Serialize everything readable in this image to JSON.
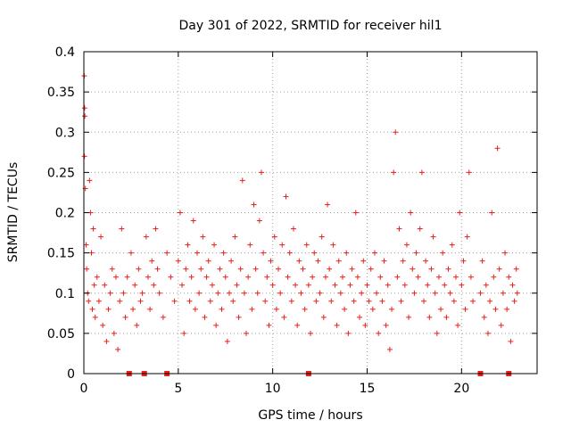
{
  "chart_data": {
    "type": "scatter",
    "title": "Day 301 of 2022, SRMTID for receiver hil1",
    "xlabel": "GPS time / hours",
    "ylabel": "SRMTID / TECUs",
    "xlim": [
      0,
      24
    ],
    "ylim": [
      0,
      0.4
    ],
    "x_ticks": [
      0,
      5,
      10,
      15,
      20
    ],
    "y_ticks": [
      0,
      0.05,
      0.1,
      0.15,
      0.2,
      0.25,
      0.3,
      0.35,
      0.4
    ],
    "x_tick_labels": [
      "0",
      "5",
      "10",
      "15",
      "20"
    ],
    "y_tick_labels": [
      "0",
      "0.05",
      "0.1",
      "0.15",
      "0.2",
      "0.25",
      "0.3",
      "0.35",
      "0.4"
    ],
    "grid": true,
    "legend": "none",
    "marker_color": "#e8201a",
    "series": [
      {
        "marker": "plus",
        "points": [
          [
            0.02,
            0.37
          ],
          [
            0.04,
            0.33
          ],
          [
            0.05,
            0.32
          ],
          [
            0.03,
            0.27
          ],
          [
            0.08,
            0.23
          ],
          [
            0.12,
            0.16
          ],
          [
            0.15,
            0.13
          ],
          [
            0.2,
            0.1
          ],
          [
            0.25,
            0.09
          ],
          [
            0.3,
            0.24
          ],
          [
            0.35,
            0.2
          ],
          [
            0.4,
            0.15
          ],
          [
            0.45,
            0.08
          ],
          [
            0.5,
            0.18
          ],
          [
            0.55,
            0.11
          ],
          [
            0.6,
            0.07
          ],
          [
            0.7,
            0.12
          ],
          [
            0.8,
            0.09
          ],
          [
            0.9,
            0.17
          ],
          [
            1.0,
            0.06
          ],
          [
            1.1,
            0.11
          ],
          [
            1.2,
            0.04
          ],
          [
            1.3,
            0.08
          ],
          [
            1.4,
            0.1
          ],
          [
            1.5,
            0.13
          ],
          [
            1.6,
            0.05
          ],
          [
            1.7,
            0.12
          ],
          [
            1.8,
            0.03
          ],
          [
            1.9,
            0.09
          ],
          [
            2.0,
            0.18
          ],
          [
            2.1,
            0.1
          ],
          [
            2.2,
            0.07
          ],
          [
            2.3,
            0.12
          ],
          [
            2.5,
            0.15
          ],
          [
            2.6,
            0.08
          ],
          [
            2.7,
            0.11
          ],
          [
            2.8,
            0.06
          ],
          [
            2.9,
            0.13
          ],
          [
            3.0,
            0.09
          ],
          [
            3.1,
            0.1
          ],
          [
            3.3,
            0.17
          ],
          [
            3.4,
            0.12
          ],
          [
            3.5,
            0.08
          ],
          [
            3.6,
            0.14
          ],
          [
            3.7,
            0.11
          ],
          [
            3.8,
            0.18
          ],
          [
            3.9,
            0.13
          ],
          [
            4.0,
            0.1
          ],
          [
            4.2,
            0.07
          ],
          [
            4.4,
            0.15
          ],
          [
            4.6,
            0.12
          ],
          [
            4.8,
            0.09
          ],
          [
            5.0,
            0.14
          ],
          [
            5.1,
            0.2
          ],
          [
            5.2,
            0.11
          ],
          [
            5.3,
            0.05
          ],
          [
            5.4,
            0.13
          ],
          [
            5.5,
            0.16
          ],
          [
            5.6,
            0.09
          ],
          [
            5.7,
            0.12
          ],
          [
            5.8,
            0.19
          ],
          [
            5.9,
            0.08
          ],
          [
            6.0,
            0.15
          ],
          [
            6.1,
            0.1
          ],
          [
            6.2,
            0.13
          ],
          [
            6.3,
            0.17
          ],
          [
            6.4,
            0.07
          ],
          [
            6.5,
            0.12
          ],
          [
            6.6,
            0.14
          ],
          [
            6.7,
            0.09
          ],
          [
            6.8,
            0.11
          ],
          [
            6.9,
            0.16
          ],
          [
            7.0,
            0.06
          ],
          [
            7.1,
            0.1
          ],
          [
            7.2,
            0.13
          ],
          [
            7.3,
            0.08
          ],
          [
            7.4,
            0.15
          ],
          [
            7.5,
            0.12
          ],
          [
            7.6,
            0.04
          ],
          [
            7.7,
            0.1
          ],
          [
            7.8,
            0.14
          ],
          [
            7.9,
            0.09
          ],
          [
            8.0,
            0.17
          ],
          [
            8.1,
            0.11
          ],
          [
            8.2,
            0.07
          ],
          [
            8.3,
            0.13
          ],
          [
            8.4,
            0.24
          ],
          [
            8.5,
            0.1
          ],
          [
            8.6,
            0.05
          ],
          [
            8.7,
            0.12
          ],
          [
            8.8,
            0.16
          ],
          [
            8.9,
            0.08
          ],
          [
            9.0,
            0.21
          ],
          [
            9.1,
            0.13
          ],
          [
            9.2,
            0.1
          ],
          [
            9.3,
            0.19
          ],
          [
            9.4,
            0.25
          ],
          [
            9.5,
            0.15
          ],
          [
            9.6,
            0.09
          ],
          [
            9.7,
            0.12
          ],
          [
            9.8,
            0.06
          ],
          [
            9.9,
            0.14
          ],
          [
            10.0,
            0.11
          ],
          [
            10.1,
            0.17
          ],
          [
            10.2,
            0.08
          ],
          [
            10.3,
            0.13
          ],
          [
            10.4,
            0.1
          ],
          [
            10.5,
            0.16
          ],
          [
            10.6,
            0.07
          ],
          [
            10.7,
            0.22
          ],
          [
            10.8,
            0.12
          ],
          [
            10.9,
            0.15
          ],
          [
            11.0,
            0.09
          ],
          [
            11.1,
            0.18
          ],
          [
            11.2,
            0.11
          ],
          [
            11.3,
            0.06
          ],
          [
            11.4,
            0.14
          ],
          [
            11.5,
            0.1
          ],
          [
            11.6,
            0.13
          ],
          [
            11.7,
            0.08
          ],
          [
            11.8,
            0.16
          ],
          [
            11.9,
            0.11
          ],
          [
            12.0,
            0.05
          ],
          [
            12.1,
            0.12
          ],
          [
            12.2,
            0.15
          ],
          [
            12.3,
            0.09
          ],
          [
            12.4,
            0.14
          ],
          [
            12.5,
            0.1
          ],
          [
            12.6,
            0.17
          ],
          [
            12.7,
            0.07
          ],
          [
            12.8,
            0.12
          ],
          [
            12.9,
            0.21
          ],
          [
            13.0,
            0.13
          ],
          [
            13.1,
            0.09
          ],
          [
            13.2,
            0.16
          ],
          [
            13.3,
            0.11
          ],
          [
            13.4,
            0.06
          ],
          [
            13.5,
            0.14
          ],
          [
            13.6,
            0.1
          ],
          [
            13.7,
            0.12
          ],
          [
            13.8,
            0.08
          ],
          [
            13.9,
            0.15
          ],
          [
            14.0,
            0.05
          ],
          [
            14.1,
            0.11
          ],
          [
            14.2,
            0.13
          ],
          [
            14.3,
            0.09
          ],
          [
            14.4,
            0.2
          ],
          [
            14.5,
            0.12
          ],
          [
            14.6,
            0.07
          ],
          [
            14.7,
            0.1
          ],
          [
            14.8,
            0.14
          ],
          [
            14.9,
            0.06
          ],
          [
            15.0,
            0.11
          ],
          [
            15.1,
            0.09
          ],
          [
            15.2,
            0.13
          ],
          [
            15.3,
            0.08
          ],
          [
            15.4,
            0.15
          ],
          [
            15.5,
            0.1
          ],
          [
            15.6,
            0.05
          ],
          [
            15.7,
            0.12
          ],
          [
            15.8,
            0.09
          ],
          [
            15.9,
            0.14
          ],
          [
            16.0,
            0.06
          ],
          [
            16.1,
            0.11
          ],
          [
            16.2,
            0.03
          ],
          [
            16.3,
            0.08
          ],
          [
            16.4,
            0.25
          ],
          [
            16.5,
            0.3
          ],
          [
            16.6,
            0.12
          ],
          [
            16.7,
            0.18
          ],
          [
            16.8,
            0.09
          ],
          [
            16.9,
            0.14
          ],
          [
            17.0,
            0.11
          ],
          [
            17.1,
            0.16
          ],
          [
            17.2,
            0.07
          ],
          [
            17.3,
            0.2
          ],
          [
            17.4,
            0.13
          ],
          [
            17.5,
            0.1
          ],
          [
            17.6,
            0.15
          ],
          [
            17.7,
            0.12
          ],
          [
            17.8,
            0.18
          ],
          [
            17.9,
            0.25
          ],
          [
            18.0,
            0.09
          ],
          [
            18.1,
            0.14
          ],
          [
            18.2,
            0.11
          ],
          [
            18.3,
            0.07
          ],
          [
            18.4,
            0.13
          ],
          [
            18.5,
            0.17
          ],
          [
            18.6,
            0.1
          ],
          [
            18.7,
            0.05
          ],
          [
            18.8,
            0.12
          ],
          [
            18.9,
            0.08
          ],
          [
            19.0,
            0.15
          ],
          [
            19.1,
            0.11
          ],
          [
            19.2,
            0.07
          ],
          [
            19.3,
            0.13
          ],
          [
            19.4,
            0.1
          ],
          [
            19.5,
            0.16
          ],
          [
            19.6,
            0.09
          ],
          [
            19.7,
            0.12
          ],
          [
            19.8,
            0.06
          ],
          [
            19.9,
            0.2
          ],
          [
            20.0,
            0.11
          ],
          [
            20.1,
            0.14
          ],
          [
            20.2,
            0.08
          ],
          [
            20.3,
            0.17
          ],
          [
            20.4,
            0.25
          ],
          [
            20.5,
            0.12
          ],
          [
            20.6,
            0.09
          ],
          [
            21.0,
            0.1
          ],
          [
            21.1,
            0.14
          ],
          [
            21.2,
            0.07
          ],
          [
            21.3,
            0.11
          ],
          [
            21.4,
            0.05
          ],
          [
            21.5,
            0.09
          ],
          [
            21.6,
            0.2
          ],
          [
            21.7,
            0.12
          ],
          [
            21.8,
            0.08
          ],
          [
            21.9,
            0.28
          ],
          [
            22.0,
            0.13
          ],
          [
            22.1,
            0.06
          ],
          [
            22.2,
            0.1
          ],
          [
            22.3,
            0.15
          ],
          [
            22.4,
            0.08
          ],
          [
            22.5,
            0.12
          ],
          [
            22.6,
            0.04
          ],
          [
            22.7,
            0.11
          ],
          [
            22.8,
            0.09
          ],
          [
            22.9,
            0.13
          ],
          [
            22.95,
            0.1
          ]
        ]
      },
      {
        "marker": "square",
        "points": [
          [
            2.4,
            0
          ],
          [
            3.2,
            0
          ],
          [
            4.4,
            0
          ],
          [
            11.9,
            0
          ],
          [
            21.0,
            0
          ],
          [
            22.5,
            0
          ]
        ]
      }
    ]
  }
}
